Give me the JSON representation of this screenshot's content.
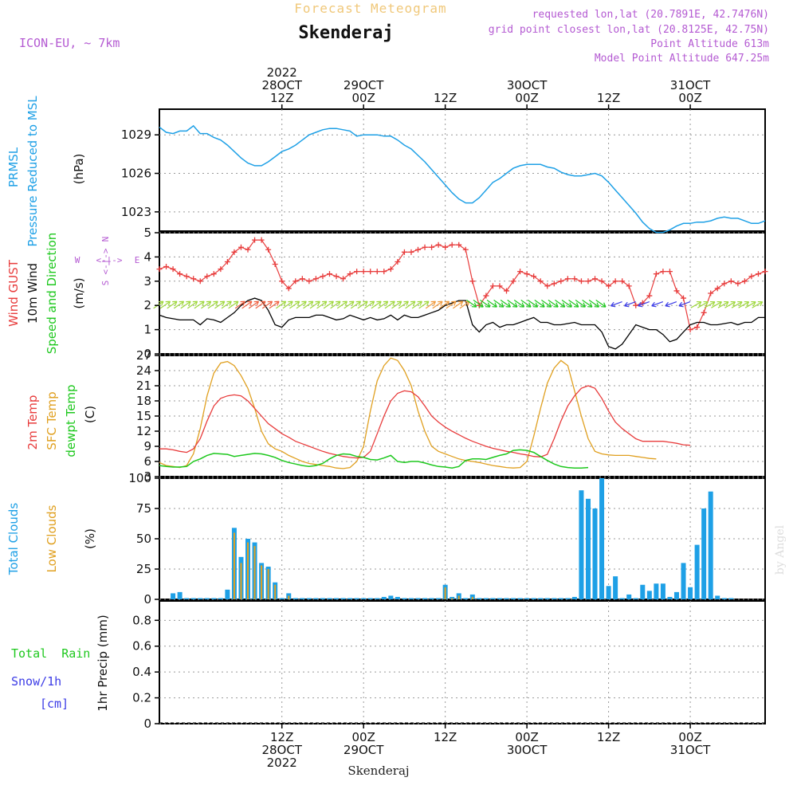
{
  "header": {
    "title": "Forecast Meteogram",
    "location": "Skenderaj",
    "model": "ICON-EU, ~ 7km",
    "requested": "requested lon,lat (20.7891E, 42.7476N)",
    "closest": "grid point closest lon,lat (20.8125E, 42.75N)",
    "point_alt": "Point Altitude 613m",
    "model_alt": "Model Point Altitude 647.25m",
    "credit": "by Angel",
    "footer_location": "Skenderaj"
  },
  "colors": {
    "pressure": "#1ea0e6",
    "gust": "#e83c3c",
    "wind": "#000000",
    "t2m": "#e83c3c",
    "sfc": "#e0a020",
    "dewpt": "#1ec81e",
    "total_clouds": "#1ea0e6",
    "low_clouds": "#e0a020",
    "rain": "#1ec81e",
    "snow": "#3c3ce6",
    "header_purple": "#b45ad2"
  },
  "time_axis": {
    "top_labels": [
      {
        "x": 18,
        "lines": [
          "2022",
          "28OCT",
          "12Z"
        ]
      },
      {
        "x": 30,
        "lines": [
          "29OCT",
          "00Z"
        ]
      },
      {
        "x": 42,
        "lines": [
          "12Z"
        ]
      },
      {
        "x": 54,
        "lines": [
          "30OCT",
          "00Z"
        ]
      },
      {
        "x": 66,
        "lines": [
          "12Z"
        ]
      },
      {
        "x": 78,
        "lines": [
          "31OCT",
          "00Z"
        ]
      }
    ],
    "bottom_labels": [
      {
        "x": 18,
        "lines": [
          "12Z",
          "28OCT",
          "2022"
        ]
      },
      {
        "x": 30,
        "lines": [
          "00Z",
          "29OCT"
        ]
      },
      {
        "x": 42,
        "lines": [
          "12Z"
        ]
      },
      {
        "x": 54,
        "lines": [
          "00Z",
          "30OCT"
        ]
      },
      {
        "x": 66,
        "lines": [
          "12Z"
        ]
      },
      {
        "x": 78,
        "lines": [
          "00Z",
          "31OCT"
        ]
      }
    ]
  },
  "panel_labels": {
    "pressure": [
      "PRMSL",
      "Pressure Reduced to MSL",
      "(hPa)"
    ],
    "wind": [
      "Wind GUST",
      "10m Wind",
      "Speed and Direction",
      "(m/s)"
    ],
    "compass": [
      "N",
      "W",
      "<-|->",
      "E",
      "S"
    ],
    "temp": [
      "2m Temp",
      "SFC Temp",
      "dewpt Temp",
      "(C)"
    ],
    "clouds": [
      "Total Clouds",
      "Low Clouds",
      "(%)"
    ],
    "precip": [
      "Total  Rain",
      "Snow/1h",
      "[cm]",
      "1hr Precip (mm)"
    ]
  },
  "chart_data": [
    {
      "type": "line",
      "name": "pressure",
      "ylabel": "(hPa)",
      "ylim": [
        1021.5,
        1031.0
      ],
      "yticks": [
        1023,
        1026,
        1029
      ],
      "x": [
        0,
        1,
        2,
        3,
        4,
        5,
        6,
        7,
        8,
        9,
        10,
        11,
        12,
        13,
        14,
        15,
        16,
        17,
        18,
        19,
        20,
        21,
        22,
        23,
        24,
        25,
        26,
        27,
        28,
        29,
        30,
        31,
        32,
        33,
        34,
        35,
        36,
        37,
        38,
        39,
        40,
        41,
        42,
        43,
        44,
        45,
        46,
        47,
        48,
        49,
        50,
        51,
        52,
        53,
        54,
        55,
        56,
        57,
        58,
        59,
        60,
        61,
        62,
        63,
        64,
        65,
        66,
        67,
        68,
        69,
        70,
        71,
        72,
        73,
        74,
        75,
        76,
        77,
        78,
        79,
        80,
        81,
        82,
        83,
        84,
        85,
        86,
        87,
        88,
        89
      ],
      "values": [
        1029.6,
        1029.2,
        1029.1,
        1029.3,
        1029.3,
        1029.7,
        1029.1,
        1029.1,
        1028.8,
        1028.6,
        1028.2,
        1027.7,
        1027.2,
        1026.8,
        1026.6,
        1026.6,
        1026.9,
        1027.3,
        1027.7,
        1027.9,
        1028.2,
        1028.6,
        1029.0,
        1029.2,
        1029.4,
        1029.5,
        1029.5,
        1029.4,
        1029.3,
        1028.9,
        1029.0,
        1029.0,
        1029.0,
        1028.9,
        1028.9,
        1028.6,
        1028.2,
        1027.9,
        1027.4,
        1026.9,
        1026.3,
        1025.7,
        1025.1,
        1024.5,
        1024.0,
        1023.7,
        1023.7,
        1024.1,
        1024.7,
        1025.3,
        1025.6,
        1026.0,
        1026.4,
        1026.6,
        1026.7,
        1026.7,
        1026.7,
        1026.5,
        1026.4,
        1026.1,
        1025.9,
        1025.8,
        1025.8,
        1025.9,
        1026.0,
        1025.8,
        1025.3,
        1024.7,
        1024.1,
        1023.5,
        1022.9,
        1022.2,
        1021.7,
        1021.4,
        1021.4,
        1021.6,
        1021.9,
        1022.1,
        1022.1,
        1022.2,
        1022.2,
        1022.3,
        1022.5,
        1022.6,
        1022.5,
        1022.5,
        1022.3,
        1022.1,
        1022.1,
        1022.3
      ],
      "xrange": [
        0,
        89
      ]
    },
    {
      "type": "line",
      "name": "wind",
      "ylabel": "(m/s)",
      "ylim": [
        0,
        5
      ],
      "yticks": [
        0,
        1,
        2,
        3,
        4,
        5
      ],
      "series": [
        {
          "name": "Wind GUST",
          "values": [
            3.5,
            3.6,
            3.5,
            3.3,
            3.2,
            3.1,
            3.0,
            3.2,
            3.3,
            3.5,
            3.8,
            4.2,
            4.4,
            4.3,
            4.7,
            4.7,
            4.3,
            3.7,
            3.0,
            2.7,
            3.0,
            3.1,
            3.0,
            3.1,
            3.2,
            3.3,
            3.2,
            3.1,
            3.3,
            3.4,
            3.4,
            3.4,
            3.4,
            3.4,
            3.5,
            3.8,
            4.2,
            4.2,
            4.3,
            4.4,
            4.4,
            4.5,
            4.4,
            4.5,
            4.5,
            4.3,
            3.0,
            2.0,
            2.4,
            2.8,
            2.8,
            2.6,
            3.0,
            3.4,
            3.3,
            3.2,
            3.0,
            2.8,
            2.9,
            3.0,
            3.1,
            3.1,
            3.0,
            3.0,
            3.1,
            3.0,
            2.8,
            3.0,
            3.0,
            2.8,
            2.0,
            2.1,
            2.4,
            3.3,
            3.4,
            3.4,
            2.6,
            2.3,
            1.0,
            1.1,
            1.7,
            2.5,
            2.7,
            2.9,
            3.0,
            2.9,
            3.0,
            3.2,
            3.3,
            3.4
          ]
        },
        {
          "name": "10m Wind",
          "values": [
            1.6,
            1.5,
            1.45,
            1.4,
            1.4,
            1.4,
            1.2,
            1.45,
            1.4,
            1.3,
            1.5,
            1.7,
            2.0,
            2.2,
            2.3,
            2.2,
            1.8,
            1.2,
            1.1,
            1.4,
            1.5,
            1.5,
            1.5,
            1.6,
            1.6,
            1.5,
            1.4,
            1.45,
            1.6,
            1.5,
            1.4,
            1.5,
            1.4,
            1.45,
            1.6,
            1.4,
            1.6,
            1.5,
            1.5,
            1.6,
            1.7,
            1.8,
            2.0,
            2.1,
            2.2,
            2.2,
            1.2,
            0.9,
            1.2,
            1.3,
            1.1,
            1.2,
            1.2,
            1.3,
            1.4,
            1.5,
            1.3,
            1.3,
            1.2,
            1.2,
            1.25,
            1.3,
            1.2,
            1.2,
            1.2,
            0.9,
            0.3,
            0.2,
            0.4,
            0.8,
            1.2,
            1.1,
            1.0,
            1.0,
            0.8,
            0.5,
            0.6,
            0.9,
            1.2,
            1.3,
            1.3,
            1.2,
            1.2,
            1.25,
            1.3,
            1.2,
            1.3,
            1.3,
            1.5,
            1.5
          ]
        }
      ]
    },
    {
      "type": "line",
      "name": "temperature",
      "ylabel": "(C)",
      "ylim": [
        3,
        27
      ],
      "yticks": [
        3,
        6,
        9,
        12,
        15,
        18,
        21,
        24,
        27
      ],
      "series": [
        {
          "name": "2m Temp",
          "values": [
            8.5,
            8.5,
            8.3,
            8.0,
            7.8,
            8.5,
            10.5,
            14.0,
            17.0,
            18.5,
            19.0,
            19.2,
            19.0,
            18.0,
            16.5,
            15.0,
            13.5,
            12.5,
            11.5,
            10.8,
            10.0,
            9.5,
            9.0,
            8.5,
            8.0,
            7.6,
            7.3,
            7.0,
            6.8,
            6.7,
            6.8,
            8.0,
            11.5,
            15.0,
            18.0,
            19.5,
            20.0,
            19.8,
            18.8,
            17.0,
            15.0,
            13.8,
            12.8,
            12.0,
            11.3,
            10.6,
            10.0,
            9.5,
            9.0,
            8.6,
            8.3,
            8.0,
            7.8,
            7.5,
            7.3,
            7.0,
            6.9,
            7.4,
            10.5,
            14.0,
            17.0,
            19.0,
            20.5,
            21.0,
            20.5,
            18.5,
            16.0,
            13.8,
            12.5,
            11.5,
            10.5,
            10.0,
            10.0,
            10.0,
            10.0,
            9.8,
            9.6,
            9.3,
            9.2
          ]
        },
        {
          "name": "SFC Temp",
          "values": [
            5.8,
            5.2,
            5.0,
            4.8,
            5.2,
            7.5,
            12.5,
            19.0,
            23.5,
            25.5,
            25.8,
            25.0,
            23.0,
            20.5,
            16.5,
            12.0,
            9.5,
            8.5,
            8.0,
            7.2,
            6.6,
            6.0,
            5.6,
            5.4,
            5.2,
            5.0,
            4.7,
            4.6,
            4.8,
            6.0,
            9.0,
            16.0,
            22.0,
            25.0,
            26.5,
            26.0,
            24.0,
            21.0,
            16.0,
            12.0,
            9.0,
            8.0,
            7.5,
            7.0,
            6.5,
            6.2,
            6.0,
            5.8,
            5.5,
            5.2,
            5.0,
            4.8,
            4.7,
            4.8,
            6.0,
            11.0,
            16.5,
            21.5,
            24.5,
            26.0,
            25.0,
            20.0,
            15.0,
            10.5,
            8.0,
            7.5,
            7.3,
            7.2,
            7.2,
            7.2,
            7.0,
            6.8,
            6.6,
            6.5
          ]
        },
        {
          "name": "dewpt Temp",
          "values": [
            5.2,
            5.0,
            4.9,
            4.9,
            5.0,
            6.0,
            6.5,
            7.2,
            7.6,
            7.5,
            7.4,
            7.0,
            7.2,
            7.4,
            7.6,
            7.5,
            7.2,
            6.8,
            6.2,
            5.8,
            5.5,
            5.2,
            5.0,
            5.2,
            5.6,
            6.5,
            7.2,
            7.5,
            7.4,
            7.0,
            6.8,
            6.4,
            6.3,
            6.7,
            7.2,
            6.0,
            5.8,
            6.0,
            6.0,
            5.7,
            5.3,
            5.0,
            4.9,
            4.7,
            5.0,
            6.2,
            6.5,
            6.5,
            6.4,
            6.8,
            7.2,
            7.5,
            8.2,
            8.3,
            8.2,
            7.8,
            7.0,
            6.2,
            5.5,
            5.0,
            4.8,
            4.7,
            4.7,
            4.8
          ]
        }
      ]
    },
    {
      "type": "bar",
      "name": "clouds",
      "ylabel": "(%)",
      "ylim": [
        0,
        100
      ],
      "yticks": [
        0,
        25,
        50,
        75,
        100
      ],
      "x_start": 2,
      "series": [
        {
          "name": "Total Clouds",
          "values": [
            5,
            6,
            1,
            1,
            1,
            1,
            1,
            1,
            8,
            59,
            35,
            50,
            47,
            30,
            27,
            14,
            1,
            5,
            1,
            1,
            1,
            1,
            1,
            1,
            1,
            1,
            1,
            1,
            1,
            1,
            1,
            2,
            3,
            2,
            1,
            1,
            1,
            1,
            1,
            1,
            12,
            2,
            5,
            1,
            4,
            1,
            1,
            1,
            1,
            1,
            1,
            1,
            1,
            1,
            1,
            1,
            1,
            1,
            1,
            2,
            90,
            83,
            75,
            100,
            11,
            19,
            1,
            4,
            1,
            12,
            7,
            13,
            13,
            2,
            6,
            30,
            10,
            45,
            75,
            89,
            3,
            1,
            1
          ]
        },
        {
          "name": "Low Clouds",
          "values": [
            0,
            0,
            0,
            0,
            0,
            0,
            0,
            0,
            0,
            55,
            30,
            47,
            44,
            28,
            25,
            12,
            0,
            3,
            0,
            0,
            0,
            0,
            0,
            0,
            0,
            0,
            0,
            0,
            0,
            0,
            0,
            0,
            0,
            0,
            0,
            0,
            0,
            0,
            0,
            0,
            10,
            1,
            3,
            0,
            2,
            0,
            0,
            0,
            0,
            0,
            0,
            0,
            0,
            0,
            0,
            0,
            0,
            0,
            0,
            0,
            0,
            0,
            0,
            0,
            0,
            0,
            0,
            0,
            0,
            0,
            0,
            0,
            0,
            0,
            0,
            0,
            0,
            0,
            0,
            0,
            0,
            0,
            0
          ]
        }
      ]
    },
    {
      "type": "bar",
      "name": "precip",
      "ylabel": "1hr Precip (mm)",
      "ylim": [
        0,
        0.95
      ],
      "yticks": [
        0,
        0.2,
        0.4,
        0.6,
        0.8
      ],
      "series": [
        {
          "name": "Total  Rain",
          "values": []
        },
        {
          "name": "Snow/1h",
          "values": []
        }
      ]
    }
  ]
}
